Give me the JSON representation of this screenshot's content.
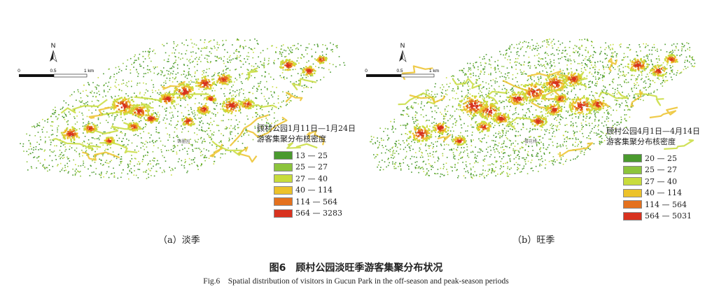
{
  "panels": [
    {
      "id": "a",
      "caption": "（a）淡季",
      "legend": {
        "title_line1": "顾村公园1月11日—1月24日",
        "title_line2": "游客集聚分布核密度",
        "items": [
          {
            "label": "13 — 25",
            "color": "#4a9a2e"
          },
          {
            "label": "25 — 27",
            "color": "#8cc43c"
          },
          {
            "label": "27 — 40",
            "color": "#c8dc3c"
          },
          {
            "label": "40 — 114",
            "color": "#ecc22a"
          },
          {
            "label": "114 — 564",
            "color": "#e4711e"
          },
          {
            "label": "564 — 3283",
            "color": "#d8321f"
          }
        ]
      },
      "map_label": "锦墨园"
    },
    {
      "id": "b",
      "caption": "（b）旺季",
      "legend": {
        "title_line1": "顾村公园4月1日—4月14日",
        "title_line2": "游客集聚分布核密度",
        "items": [
          {
            "label": "20 — 25",
            "color": "#4a9a2e"
          },
          {
            "label": "25 — 27",
            "color": "#8cc43c"
          },
          {
            "label": "27 — 40",
            "color": "#c8dc3c"
          },
          {
            "label": "40 — 114",
            "color": "#ecc22a"
          },
          {
            "label": "114 — 564",
            "color": "#e4711e"
          },
          {
            "label": "564 — 5031",
            "color": "#d8321f"
          }
        ]
      },
      "map_label": "樱花林"
    }
  ],
  "scalebar": {
    "tick0": "0",
    "tick1": "0.5",
    "tick2": "1 km",
    "north": "N"
  },
  "figure": {
    "title": "图6　顾村公园淡旺季游客集聚分布状况",
    "title_en": "Fig.6　Spatial distribution of visitors in Gucun Park in the off-season and peak-season periods"
  }
}
